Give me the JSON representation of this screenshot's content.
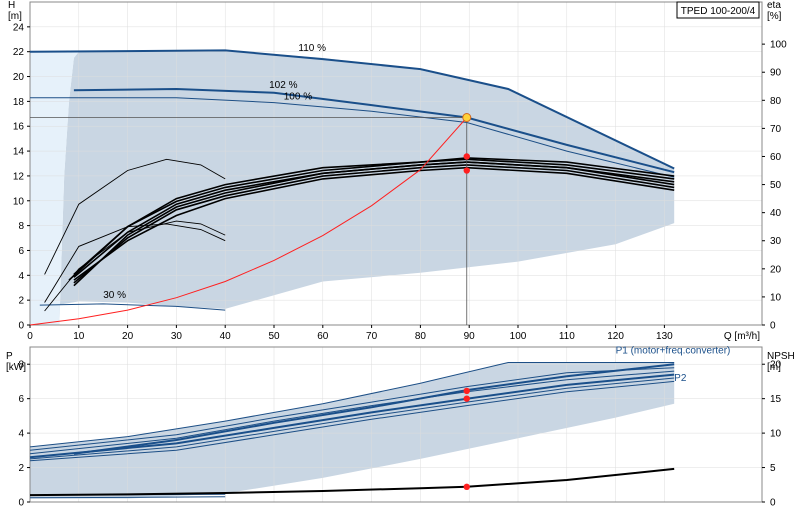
{
  "colors": {
    "envelope": "#c9d6e3",
    "envelope_light": "#e6f1fa",
    "curve_main": "#1a4f8a",
    "curve_thin": "#1d4f86",
    "efficiency": "#000000",
    "system_curve": "#ff2020",
    "duty_point": "#ff2020",
    "duty_point_highlight": "#ffd23a",
    "grid": "#dddddd",
    "axis": "#888888"
  },
  "chart_data": [
    {
      "type": "line",
      "name": "head-efficiency",
      "title": "TPED 100-200/4",
      "x_ticks": [
        "0",
        "10",
        "20",
        "30",
        "40",
        "50",
        "60",
        "70",
        "80",
        "90",
        "100",
        "110",
        "120",
        "130"
      ],
      "xlabel": "Q [m³/h]",
      "xlim": [
        0,
        150
      ],
      "ylabel_left_top": "H",
      "ylabel_left_unit": "[m]",
      "ylim_left": [
        0,
        26
      ],
      "y_ticks_left": [
        "0",
        "2",
        "4",
        "6",
        "8",
        "10",
        "12",
        "14",
        "16",
        "18",
        "20",
        "22",
        "24"
      ],
      "ylabel_right_top": "eta",
      "ylabel_right_unit": "[%]",
      "ylim_right": [
        0,
        115
      ],
      "y_ticks_right": [
        "0",
        "10",
        "20",
        "30",
        "40",
        "50",
        "60",
        "70",
        "80",
        "90",
        "100"
      ],
      "grid": true,
      "annotations": [
        {
          "text": "110 %",
          "x": 55,
          "y": 21.9
        },
        {
          "text": "102 %",
          "x": 49,
          "y": 18.9
        },
        {
          "text": "100 %",
          "x": 52,
          "y": 18.0
        },
        {
          "text": "30 %",
          "x": 15,
          "y": 2.0
        }
      ],
      "envelope": [
        [
          0,
          0
        ],
        [
          6,
          0
        ],
        [
          7,
          12
        ],
        [
          8,
          18
        ],
        [
          9,
          21.5
        ],
        [
          10,
          22.0
        ],
        [
          40,
          22.1
        ],
        [
          60,
          21.5
        ],
        [
          80,
          20.5
        ],
        [
          98,
          19.0
        ],
        [
          132,
          12.6
        ],
        [
          132,
          8.2
        ],
        [
          120,
          6.5
        ],
        [
          100,
          5.1
        ],
        [
          80,
          4.2
        ],
        [
          60,
          3.5
        ],
        [
          40,
          1.3
        ],
        [
          30,
          1.5
        ],
        [
          20,
          1.8
        ],
        [
          10,
          1.9
        ],
        [
          4,
          1.5
        ]
      ],
      "envelope_light": [
        [
          0,
          0
        ],
        [
          6,
          0
        ],
        [
          7,
          12
        ],
        [
          8,
          18
        ],
        [
          9,
          21.5
        ],
        [
          10,
          22.0
        ],
        [
          0,
          22.0
        ]
      ],
      "series": [
        {
          "name": "110 %",
          "style": "main",
          "points": [
            [
              0,
              22.0
            ],
            [
              20,
              22.05
            ],
            [
              40,
              22.1
            ],
            [
              60,
              21.4
            ],
            [
              80,
              20.6
            ],
            [
              98,
              19.0
            ],
            [
              132,
              12.6
            ]
          ]
        },
        {
          "name": "102 %",
          "style": "main",
          "points": [
            [
              9,
              18.9
            ],
            [
              30,
              19.0
            ],
            [
              50,
              18.7
            ],
            [
              70,
              17.7
            ],
            [
              89.5,
              16.7
            ],
            [
              110,
              14.5
            ],
            [
              132,
              12.3
            ]
          ]
        },
        {
          "name": "100 %",
          "style": "thin",
          "points": [
            [
              0,
              18.3
            ],
            [
              30,
              18.3
            ],
            [
              50,
              17.9
            ],
            [
              70,
              17.2
            ],
            [
              89.5,
              16.3
            ],
            [
              110,
              14.0
            ],
            [
              132,
              11.9
            ]
          ]
        },
        {
          "name": "30 %",
          "style": "thin",
          "points": [
            [
              2,
              1.6
            ],
            [
              15,
              1.7
            ],
            [
              30,
              1.5
            ],
            [
              40,
              1.2
            ]
          ]
        }
      ],
      "efficiency_curves": [
        [
          [
            8,
            16
          ],
          [
            20,
            35
          ],
          [
            30,
            45
          ],
          [
            40,
            50
          ],
          [
            60,
            56
          ],
          [
            80,
            58
          ],
          [
            89.5,
            59.5
          ],
          [
            110,
            58
          ],
          [
            132,
            53
          ]
        ],
        [
          [
            9,
            17
          ],
          [
            20,
            33
          ],
          [
            30,
            43
          ],
          [
            40,
            48
          ],
          [
            60,
            54
          ],
          [
            80,
            57
          ],
          [
            89.5,
            58
          ],
          [
            110,
            56
          ],
          [
            132,
            51
          ]
        ],
        [
          [
            9,
            18
          ],
          [
            20,
            35
          ],
          [
            30,
            44
          ],
          [
            40,
            49
          ],
          [
            60,
            55
          ],
          [
            80,
            58
          ],
          [
            89.5,
            59
          ],
          [
            110,
            57
          ],
          [
            132,
            52
          ]
        ],
        [
          [
            9,
            15
          ],
          [
            20,
            31
          ],
          [
            30,
            41
          ],
          [
            40,
            46
          ],
          [
            60,
            53
          ],
          [
            80,
            56
          ],
          [
            89.5,
            57
          ],
          [
            110,
            55
          ],
          [
            132,
            49
          ]
        ],
        [
          [
            9,
            16
          ],
          [
            20,
            30
          ],
          [
            30,
            39
          ],
          [
            40,
            45
          ],
          [
            60,
            52
          ],
          [
            80,
            55
          ],
          [
            89.5,
            56
          ],
          [
            110,
            54
          ],
          [
            132,
            48
          ]
        ],
        [
          [
            9,
            14
          ],
          [
            20,
            32
          ],
          [
            30,
            42
          ],
          [
            40,
            47
          ],
          [
            60,
            54
          ],
          [
            80,
            57
          ],
          [
            89.5,
            58
          ],
          [
            110,
            56
          ],
          [
            132,
            50
          ]
        ],
        [
          [
            3,
            8
          ],
          [
            10,
            28
          ],
          [
            20,
            35
          ],
          [
            28,
            36
          ],
          [
            35,
            34
          ],
          [
            40,
            30
          ]
        ],
        [
          [
            3,
            5
          ],
          [
            10,
            20
          ],
          [
            20,
            33
          ],
          [
            30,
            37
          ],
          [
            35,
            36
          ],
          [
            40,
            32
          ]
        ],
        [
          [
            3,
            18
          ],
          [
            10,
            43
          ],
          [
            20,
            55
          ],
          [
            28,
            59
          ],
          [
            35,
            57
          ],
          [
            40,
            52
          ]
        ]
      ],
      "system_curve": [
        [
          0,
          0
        ],
        [
          10,
          0.5
        ],
        [
          20,
          1.2
        ],
        [
          30,
          2.2
        ],
        [
          40,
          3.5
        ],
        [
          50,
          5.2
        ],
        [
          60,
          7.2
        ],
        [
          70,
          9.6
        ],
        [
          80,
          12.5
        ],
        [
          89.5,
          16.7
        ]
      ],
      "duty_points": [
        {
          "x": 89.5,
          "y": 16.7,
          "axis": "left",
          "highlight": true
        },
        {
          "x": 89.5,
          "y": 60.0,
          "axis": "right"
        },
        {
          "x": 89.5,
          "y": 55.0,
          "axis": "right"
        }
      ],
      "crosshair": {
        "x": 89.5,
        "y": 16.7
      }
    },
    {
      "type": "line",
      "name": "power-npsh",
      "xlim": [
        0,
        150
      ],
      "ylabel_left_top": "P",
      "ylabel_left_unit": "[kW]",
      "ylim_left": [
        0,
        9
      ],
      "y_ticks_left": [
        "0",
        "2",
        "4",
        "6",
        "8"
      ],
      "ylabel_right_top": "NPSH",
      "ylabel_right_unit": "[m]",
      "ylim_right": [
        0,
        22.5
      ],
      "y_ticks_right": [
        "0",
        "5",
        "10",
        "15",
        "20"
      ],
      "grid": true,
      "annotations": [
        {
          "text": "P1 (motor+freq.converter)",
          "x": 120,
          "y": 8.5
        },
        {
          "text": "P2",
          "x": 132,
          "y": 6.9
        }
      ],
      "envelope": [
        [
          0,
          3.2
        ],
        [
          20,
          3.8
        ],
        [
          40,
          4.7
        ],
        [
          60,
          5.7
        ],
        [
          80,
          6.9
        ],
        [
          98,
          8.1
        ],
        [
          132,
          8.1
        ],
        [
          132,
          5.7
        ],
        [
          120,
          4.9
        ],
        [
          100,
          3.7
        ],
        [
          80,
          2.5
        ],
        [
          60,
          1.4
        ],
        [
          40,
          0.5
        ],
        [
          20,
          0.2
        ],
        [
          0,
          0.2
        ]
      ],
      "series": [
        {
          "name": "P1 (motor+freq.converter)",
          "style": "main",
          "points": [
            [
              9,
              2.8
            ],
            [
              30,
              3.6
            ],
            [
              50,
              4.6
            ],
            [
              70,
              5.5
            ],
            [
              89.5,
              6.5
            ],
            [
              110,
              7.3
            ],
            [
              132,
              8.0
            ]
          ]
        },
        {
          "name": "P2",
          "style": "main",
          "points": [
            [
              0,
              2.6
            ],
            [
              30,
              3.4
            ],
            [
              50,
              4.3
            ],
            [
              70,
              5.2
            ],
            [
              89.5,
              6.0
            ],
            [
              110,
              6.8
            ],
            [
              132,
              7.4
            ]
          ]
        },
        {
          "name": "",
          "style": "thin",
          "points": [
            [
              0,
              3.2
            ],
            [
              20,
              3.8
            ],
            [
              40,
              4.7
            ],
            [
              60,
              5.7
            ],
            [
              80,
              6.9
            ],
            [
              98,
              8.1
            ],
            [
              132,
              8.1
            ]
          ]
        },
        {
          "name": "",
          "style": "thin",
          "points": [
            [
              0,
              3.0
            ],
            [
              30,
              3.9
            ],
            [
              50,
              4.9
            ],
            [
              70,
              5.8
            ],
            [
              89.5,
              6.7
            ],
            [
              110,
              7.5
            ],
            [
              132,
              7.8
            ]
          ]
        },
        {
          "name": "",
          "style": "thin",
          "points": [
            [
              0,
              2.8
            ],
            [
              30,
              3.7
            ],
            [
              50,
              4.7
            ],
            [
              70,
              5.6
            ],
            [
              89.5,
              6.4
            ],
            [
              110,
              7.1
            ],
            [
              132,
              7.6
            ]
          ]
        },
        {
          "name": "",
          "style": "thin",
          "points": [
            [
              0,
              2.5
            ],
            [
              30,
              3.2
            ],
            [
              50,
              4.1
            ],
            [
              70,
              5.0
            ],
            [
              89.5,
              5.8
            ],
            [
              110,
              6.6
            ],
            [
              132,
              7.2
            ]
          ]
        },
        {
          "name": "",
          "style": "thin",
          "points": [
            [
              0,
              2.4
            ],
            [
              30,
              3.0
            ],
            [
              50,
              3.9
            ],
            [
              70,
              4.8
            ],
            [
              89.5,
              5.6
            ],
            [
              110,
              6.4
            ],
            [
              132,
              7.0
            ]
          ]
        },
        {
          "name": "",
          "style": "thin",
          "points": [
            [
              0,
              0.4
            ],
            [
              20,
              0.42
            ],
            [
              40,
              0.45
            ]
          ]
        },
        {
          "name": "",
          "style": "thin",
          "points": [
            [
              0,
              0.25
            ],
            [
              20,
              0.27
            ],
            [
              40,
              0.3
            ]
          ]
        }
      ],
      "npsh": [
        [
          0,
          1.0
        ],
        [
          20,
          1.1
        ],
        [
          40,
          1.3
        ],
        [
          60,
          1.6
        ],
        [
          80,
          2.0
        ],
        [
          89.5,
          2.2
        ],
        [
          110,
          3.2
        ],
        [
          132,
          4.8
        ]
      ],
      "duty_points": [
        {
          "x": 89.5,
          "y": 6.45,
          "axis": "left"
        },
        {
          "x": 89.5,
          "y": 6.0,
          "axis": "left"
        },
        {
          "x": 89.5,
          "y": 2.2,
          "axis": "right"
        }
      ]
    }
  ]
}
